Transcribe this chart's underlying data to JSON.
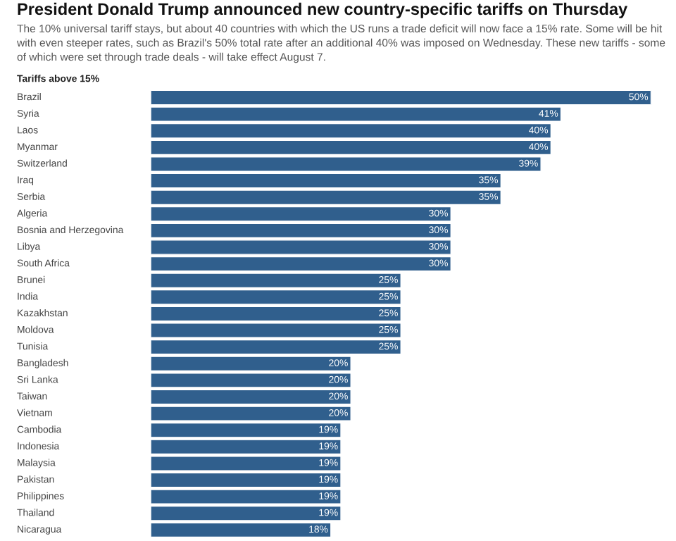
{
  "chart_data": {
    "type": "bar",
    "orientation": "horizontal",
    "title": "President Donald Trump announced new country-specific tariffs on Thursday",
    "subtitle": "The 10% universal tariff stays, but about 40 countries with which the US runs a trade deficit will now face a 15% rate. Some will be hit with even steeper rates, such as Brazil's 50% total rate after an additional 40% was imposed on Wednesday. These new tariffs - some of which were set through trade deals - will take effect August 7.",
    "ylabel": "Tariffs above 15%",
    "categories": [
      "Brazil",
      "Syria",
      "Laos",
      "Myanmar",
      "Switzerland",
      "Iraq",
      "Serbia",
      "Algeria",
      "Bosnia and Herzegovina",
      "Libya",
      "South Africa",
      "Brunei",
      "India",
      "Kazakhstan",
      "Moldova",
      "Tunisia",
      "Bangladesh",
      "Sri Lanka",
      "Taiwan",
      "Vietnam",
      "Cambodia",
      "Indonesia",
      "Malaysia",
      "Pakistan",
      "Philippines",
      "Thailand",
      "Nicaragua"
    ],
    "values": [
      50,
      41,
      40,
      40,
      39,
      35,
      35,
      30,
      30,
      30,
      30,
      25,
      25,
      25,
      25,
      25,
      20,
      20,
      20,
      20,
      19,
      19,
      19,
      19,
      19,
      19,
      18
    ],
    "value_labels": [
      "50%",
      "41%",
      "40%",
      "40%",
      "39%",
      "35%",
      "35%",
      "30%",
      "30%",
      "30%",
      "30%",
      "25%",
      "25%",
      "25%",
      "25%",
      "25%",
      "20%",
      "20%",
      "20%",
      "20%",
      "19%",
      "19%",
      "19%",
      "19%",
      "19%",
      "19%",
      "18%"
    ],
    "color": "#305f8d"
  }
}
